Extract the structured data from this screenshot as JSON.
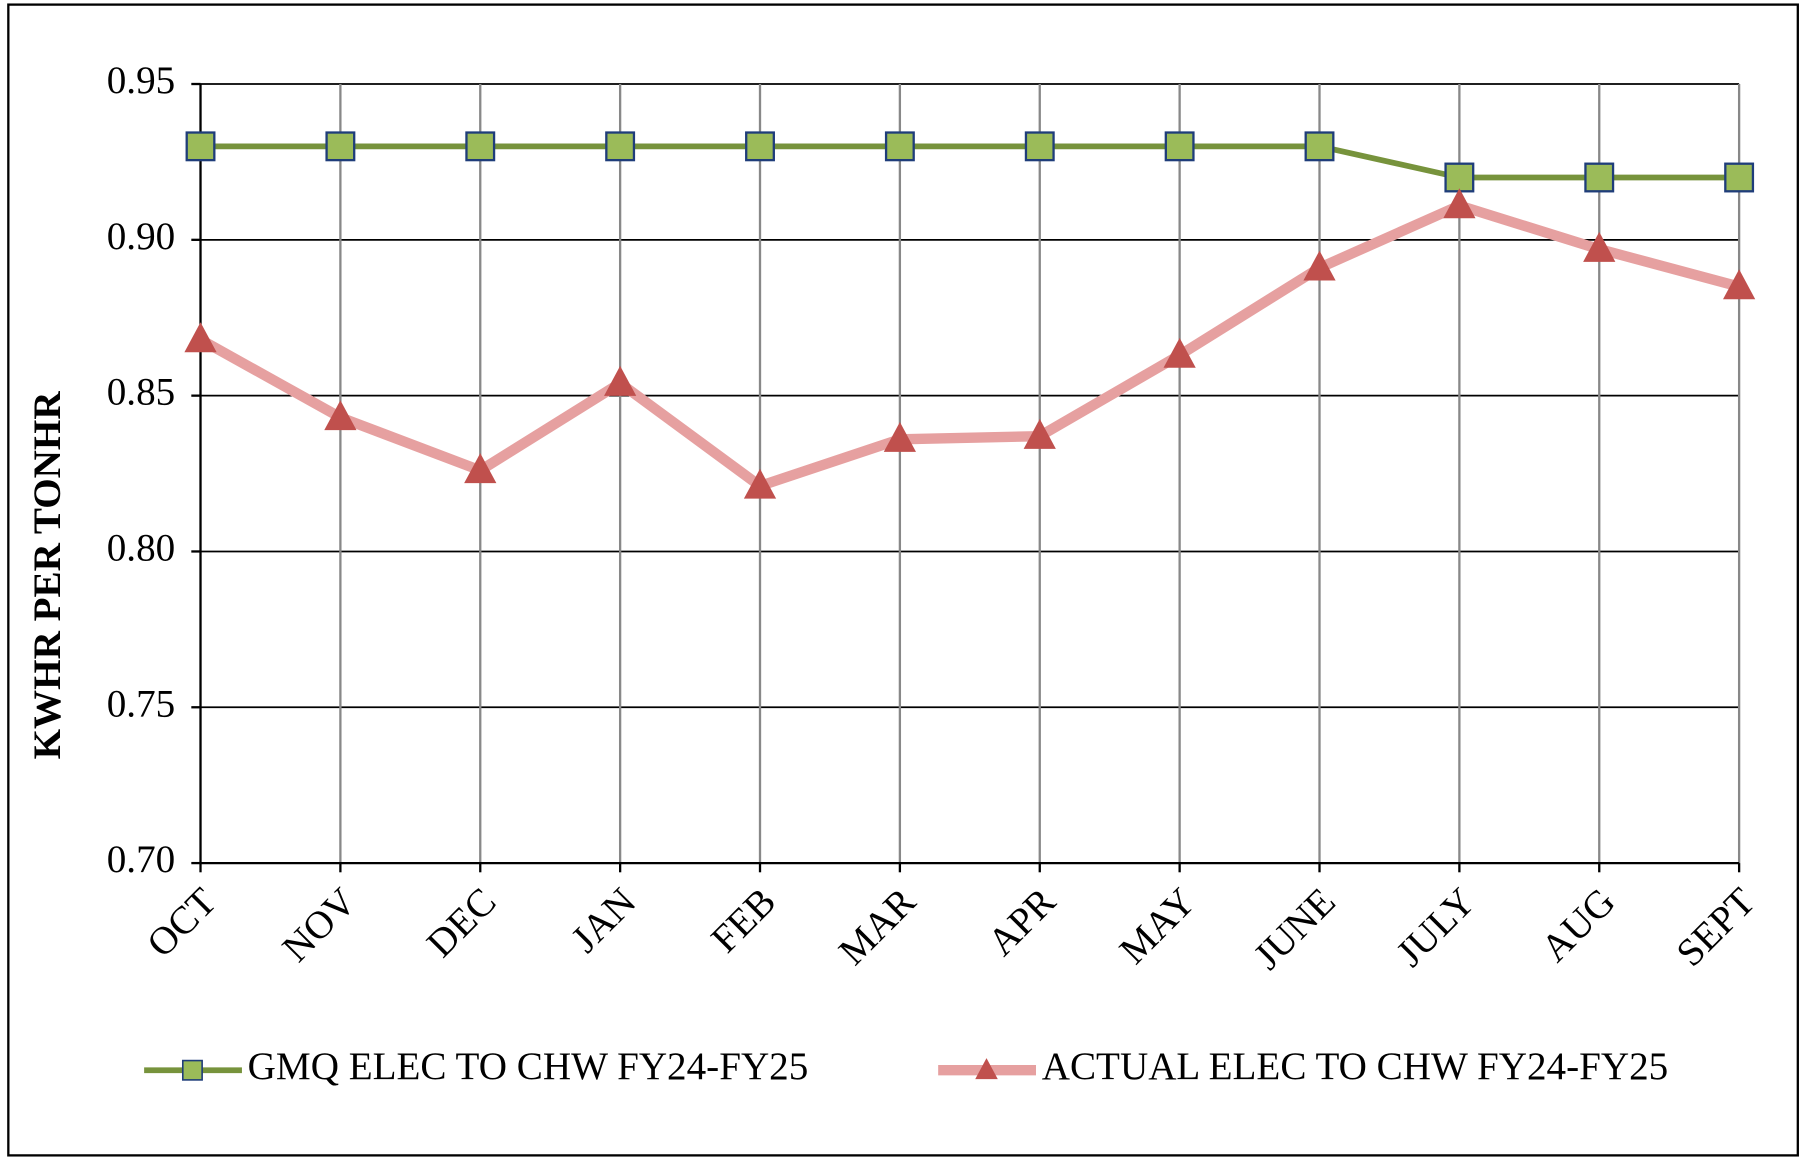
{
  "chart_data": {
    "type": "line",
    "y_label": "KWHR  PER TONHR",
    "categories": [
      "OCT",
      "NOV",
      "DEC",
      "JAN",
      "FEB",
      "MAR",
      "APR",
      "MAY",
      "JUNE",
      "JULY",
      "AUG",
      "SEPT"
    ],
    "series": [
      {
        "name": "GMQ ELEC TO CHW FY24-FY25",
        "color": "#77933c",
        "marker": "square",
        "marker_color": "#9bbb59",
        "values": [
          0.93,
          0.93,
          0.93,
          0.93,
          0.93,
          0.93,
          0.93,
          0.93,
          0.93,
          0.92,
          0.92,
          0.92
        ]
      },
      {
        "name": "ACTUAL ELEC TO CHW FY24-FY25",
        "color": "#e6a0a0",
        "marker": "triangle",
        "marker_color": "#c0504d",
        "values": [
          0.868,
          0.843,
          0.826,
          0.854,
          0.821,
          0.836,
          0.837,
          0.863,
          0.891,
          0.911,
          0.897,
          0.885
        ]
      }
    ],
    "ylim": [
      0.7,
      0.95
    ],
    "yticks": [
      {
        "value": 0.7,
        "label": "0.70"
      },
      {
        "value": 0.75,
        "label": "0.75"
      },
      {
        "value": 0.8,
        "label": "0.80"
      },
      {
        "value": 0.85,
        "label": "0.85"
      },
      {
        "value": 0.9,
        "label": "0.90"
      },
      {
        "value": 0.95,
        "label": "0.95"
      }
    ],
    "grid": true,
    "legend": "bottom"
  }
}
